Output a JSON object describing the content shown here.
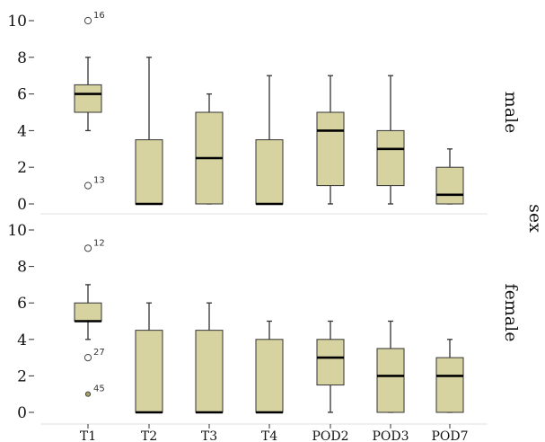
{
  "chart_data": {
    "type": "boxplot",
    "facet_title": "sex",
    "categories": [
      "T1",
      "T2",
      "T3",
      "T4",
      "POD2",
      "POD3",
      "POD7"
    ],
    "ylim": [
      0,
      10
    ],
    "yticks": [
      0,
      2,
      4,
      6,
      8,
      10
    ],
    "colors": {
      "box_fill": "#d6d3a0",
      "box_stroke": "#333333",
      "median": "#000000",
      "grid": "#dddddd"
    },
    "panels": [
      {
        "name": "male",
        "boxes": [
          {
            "category": "T1",
            "min": 4,
            "q1": 5,
            "median": 6,
            "q3": 6.5,
            "max": 8
          },
          {
            "category": "T2",
            "min": 0,
            "q1": 0,
            "median": 0,
            "q3": 3.5,
            "max": 8
          },
          {
            "category": "T3",
            "min": 0,
            "q1": 0,
            "median": 2.5,
            "q3": 5,
            "max": 6
          },
          {
            "category": "T4",
            "min": 0,
            "q1": 0,
            "median": 0,
            "q3": 3.5,
            "max": 7
          },
          {
            "category": "POD2",
            "min": 0,
            "q1": 1,
            "median": 4,
            "q3": 5,
            "max": 7
          },
          {
            "category": "POD3",
            "min": 0,
            "q1": 1,
            "median": 3,
            "q3": 4,
            "max": 7
          },
          {
            "category": "POD7",
            "min": 0,
            "q1": 0,
            "median": 0.5,
            "q3": 2,
            "max": 3
          }
        ],
        "outliers": [
          {
            "category": "T1",
            "value": 10,
            "label": "16",
            "filled": false
          },
          {
            "category": "T1",
            "value": 1,
            "label": "13",
            "filled": false
          }
        ]
      },
      {
        "name": "female",
        "boxes": [
          {
            "category": "T1",
            "min": 4,
            "q1": 5,
            "median": 5,
            "q3": 6,
            "max": 7
          },
          {
            "category": "T2",
            "min": 0,
            "q1": 0,
            "median": 0,
            "q3": 4.5,
            "max": 6
          },
          {
            "category": "T3",
            "min": 0,
            "q1": 0,
            "median": 0,
            "q3": 4.5,
            "max": 6
          },
          {
            "category": "T4",
            "min": 0,
            "q1": 0,
            "median": 0,
            "q3": 4,
            "max": 5
          },
          {
            "category": "POD2",
            "min": 0,
            "q1": 1.5,
            "median": 3,
            "q3": 4,
            "max": 5
          },
          {
            "category": "POD3",
            "min": 0,
            "q1": 0,
            "median": 2,
            "q3": 3.5,
            "max": 5
          },
          {
            "category": "POD7",
            "min": 0,
            "q1": 0,
            "median": 2,
            "q3": 3,
            "max": 4
          }
        ],
        "outliers": [
          {
            "category": "T1",
            "value": 9,
            "label": "12",
            "filled": false
          },
          {
            "category": "T1",
            "value": 3,
            "label": "27",
            "filled": false
          },
          {
            "category": "T1",
            "value": 1,
            "label": "45",
            "filled": true
          }
        ]
      }
    ]
  }
}
